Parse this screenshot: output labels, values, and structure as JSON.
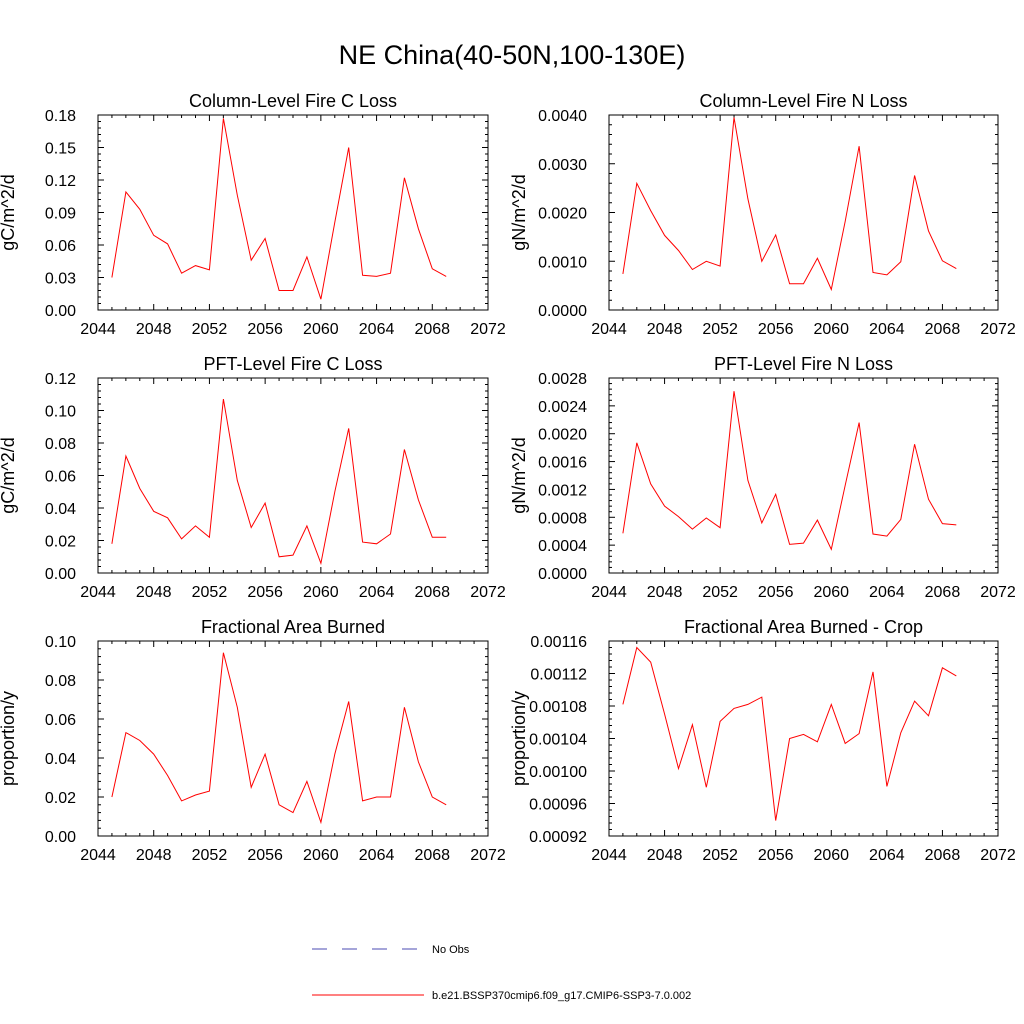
{
  "page_title": "NE China(40-50N,100-130E)",
  "legend": [
    {
      "label": "No Obs",
      "color": "#4b4bb3",
      "style": "dashed"
    },
    {
      "label": "b.e21.BSSP370cmip6.f09_g17.CMIP6-SSP3-7.0.002",
      "color": "#ff0000",
      "style": "solid"
    }
  ],
  "chart_data": [
    {
      "type": "line",
      "title": "Column-Level Fire C Loss",
      "ylabel": "gC/m^2/d",
      "xlim": [
        2044,
        2072
      ],
      "x_ticks": [
        "2044",
        "2048",
        "2052",
        "2056",
        "2060",
        "2064",
        "2068",
        "2072"
      ],
      "ylim": [
        0,
        0.18
      ],
      "y_ticks": [
        "0.00",
        "0.03",
        "0.06",
        "0.09",
        "0.12",
        "0.15",
        "0.18"
      ],
      "x": [
        2045,
        2046,
        2047,
        2048,
        2049,
        2050,
        2051,
        2052,
        2053,
        2054,
        2055,
        2056,
        2057,
        2058,
        2059,
        2060,
        2061,
        2062,
        2063,
        2064,
        2065,
        2066,
        2067,
        2068,
        2069
      ],
      "series": [
        {
          "color": "#ff0000",
          "values": [
            0.03,
            0.109,
            0.093,
            0.069,
            0.061,
            0.034,
            0.041,
            0.037,
            0.177,
            0.106,
            0.046,
            0.066,
            0.018,
            0.018,
            0.049,
            0.01,
            0.081,
            0.15,
            0.032,
            0.031,
            0.034,
            0.122,
            0.075,
            0.038,
            0.031
          ]
        }
      ]
    },
    {
      "type": "line",
      "title": "Column-Level Fire N Loss",
      "ylabel": "gN/m^2/d",
      "xlim": [
        2044,
        2072
      ],
      "x_ticks": [
        "2044",
        "2048",
        "2052",
        "2056",
        "2060",
        "2064",
        "2068",
        "2072"
      ],
      "ylim": [
        0,
        0.004
      ],
      "y_ticks": [
        "0.0000",
        "0.0010",
        "0.0020",
        "0.0030",
        "0.0040"
      ],
      "x": [
        2045,
        2046,
        2047,
        2048,
        2049,
        2050,
        2051,
        2052,
        2053,
        2054,
        2055,
        2056,
        2057,
        2058,
        2059,
        2060,
        2061,
        2062,
        2063,
        2064,
        2065,
        2066,
        2067,
        2068,
        2069
      ],
      "series": [
        {
          "color": "#ff0000",
          "values": [
            0.00074,
            0.0026,
            0.00204,
            0.00153,
            0.00122,
            0.00083,
            0.001,
            0.0009,
            0.00395,
            0.00228,
            0.001,
            0.00154,
            0.00054,
            0.00054,
            0.00106,
            0.00042,
            0.00182,
            0.00336,
            0.00077,
            0.00072,
            0.00099,
            0.00276,
            0.00162,
            0.00101,
            0.00085
          ]
        }
      ]
    },
    {
      "type": "line",
      "title": "PFT-Level Fire C Loss",
      "ylabel": "gC/m^2/d",
      "xlim": [
        2044,
        2072
      ],
      "x_ticks": [
        "2044",
        "2048",
        "2052",
        "2056",
        "2060",
        "2064",
        "2068",
        "2072"
      ],
      "ylim": [
        0,
        0.12
      ],
      "y_ticks": [
        "0.00",
        "0.02",
        "0.04",
        "0.06",
        "0.08",
        "0.10",
        "0.12"
      ],
      "x": [
        2045,
        2046,
        2047,
        2048,
        2049,
        2050,
        2051,
        2052,
        2053,
        2054,
        2055,
        2056,
        2057,
        2058,
        2059,
        2060,
        2061,
        2062,
        2063,
        2064,
        2065,
        2066,
        2067,
        2068,
        2069
      ],
      "series": [
        {
          "color": "#ff0000",
          "values": [
            0.018,
            0.072,
            0.052,
            0.038,
            0.034,
            0.021,
            0.029,
            0.022,
            0.107,
            0.057,
            0.028,
            0.043,
            0.01,
            0.011,
            0.029,
            0.006,
            0.05,
            0.089,
            0.019,
            0.018,
            0.024,
            0.076,
            0.045,
            0.022,
            0.022
          ]
        }
      ]
    },
    {
      "type": "line",
      "title": "PFT-Level Fire N Loss",
      "ylabel": "gN/m^2/d",
      "xlim": [
        2044,
        2072
      ],
      "x_ticks": [
        "2044",
        "2048",
        "2052",
        "2056",
        "2060",
        "2064",
        "2068",
        "2072"
      ],
      "ylim": [
        0,
        0.0028
      ],
      "y_ticks": [
        "0.0000",
        "0.0004",
        "0.0008",
        "0.0012",
        "0.0016",
        "0.0020",
        "0.0024",
        "0.0028"
      ],
      "x": [
        2045,
        2046,
        2047,
        2048,
        2049,
        2050,
        2051,
        2052,
        2053,
        2054,
        2055,
        2056,
        2057,
        2058,
        2059,
        2060,
        2061,
        2062,
        2063,
        2064,
        2065,
        2066,
        2067,
        2068,
        2069
      ],
      "series": [
        {
          "color": "#ff0000",
          "values": [
            0.00057,
            0.00187,
            0.00128,
            0.00096,
            0.00081,
            0.00063,
            0.00079,
            0.00065,
            0.00261,
            0.00133,
            0.00072,
            0.00113,
            0.00041,
            0.00043,
            0.00076,
            0.00034,
            0.00126,
            0.00216,
            0.00056,
            0.00053,
            0.00077,
            0.00185,
            0.00106,
            0.00071,
            0.00069
          ]
        }
      ]
    },
    {
      "type": "line",
      "title": "Fractional Area Burned",
      "ylabel": "proportion/y",
      "xlim": [
        2044,
        2072
      ],
      "x_ticks": [
        "2044",
        "2048",
        "2052",
        "2056",
        "2060",
        "2064",
        "2068",
        "2072"
      ],
      "ylim": [
        0,
        0.1
      ],
      "y_ticks": [
        "0.00",
        "0.02",
        "0.04",
        "0.06",
        "0.08",
        "0.10"
      ],
      "x": [
        2045,
        2046,
        2047,
        2048,
        2049,
        2050,
        2051,
        2052,
        2053,
        2054,
        2055,
        2056,
        2057,
        2058,
        2059,
        2060,
        2061,
        2062,
        2063,
        2064,
        2065,
        2066,
        2067,
        2068,
        2069
      ],
      "series": [
        {
          "color": "#ff0000",
          "values": [
            0.02,
            0.053,
            0.049,
            0.042,
            0.031,
            0.018,
            0.021,
            0.023,
            0.094,
            0.066,
            0.025,
            0.042,
            0.016,
            0.012,
            0.028,
            0.007,
            0.042,
            0.069,
            0.018,
            0.02,
            0.02,
            0.066,
            0.038,
            0.02,
            0.016
          ]
        }
      ]
    },
    {
      "type": "line",
      "title": "Fractional Area Burned - Crop",
      "ylabel": "proportion/y",
      "xlim": [
        2044,
        2072
      ],
      "x_ticks": [
        "2044",
        "2048",
        "2052",
        "2056",
        "2060",
        "2064",
        "2068",
        "2072"
      ],
      "ylim": [
        0.00092,
        0.00116
      ],
      "y_ticks": [
        "0.00092",
        "0.00096",
        "0.00100",
        "0.00104",
        "0.00108",
        "0.00112",
        "0.00116"
      ],
      "x": [
        2045,
        2046,
        2047,
        2048,
        2049,
        2050,
        2051,
        2052,
        2053,
        2054,
        2055,
        2056,
        2057,
        2058,
        2059,
        2060,
        2061,
        2062,
        2063,
        2064,
        2065,
        2066,
        2067,
        2068,
        2069
      ],
      "series": [
        {
          "color": "#ff0000",
          "values": [
            0.001082,
            0.001152,
            0.001134,
            0.00107,
            0.001003,
            0.001057,
            0.00098,
            0.001061,
            0.001077,
            0.001082,
            0.001091,
            0.000939,
            0.00104,
            0.001045,
            0.001036,
            0.001082,
            0.001034,
            0.001046,
            0.001122,
            0.000981,
            0.001047,
            0.001086,
            0.001068,
            0.001127,
            0.001117
          ]
        }
      ]
    }
  ]
}
